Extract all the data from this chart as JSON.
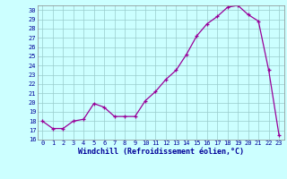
{
  "x": [
    0,
    1,
    2,
    3,
    4,
    5,
    6,
    7,
    8,
    9,
    10,
    11,
    12,
    13,
    14,
    15,
    16,
    17,
    18,
    19,
    20,
    21,
    22,
    23
  ],
  "y": [
    18.0,
    17.2,
    17.2,
    18.0,
    18.2,
    19.9,
    19.5,
    18.5,
    18.5,
    18.5,
    20.2,
    21.2,
    22.5,
    23.5,
    25.2,
    27.2,
    28.5,
    29.3,
    30.3,
    30.5,
    29.5,
    28.8,
    23.5,
    16.5
  ],
  "line_color": "#990099",
  "marker": "+",
  "markersize": 3,
  "linewidth": 0.9,
  "bg_color": "#ccffff",
  "grid_color": "#99cccc",
  "xlabel": "Windchill (Refroidissement éolien,°C)",
  "xlim": [
    -0.5,
    23.5
  ],
  "ylim": [
    16,
    30.5
  ],
  "xticks": [
    0,
    1,
    2,
    3,
    4,
    5,
    6,
    7,
    8,
    9,
    10,
    11,
    12,
    13,
    14,
    15,
    16,
    17,
    18,
    19,
    20,
    21,
    22,
    23
  ],
  "yticks": [
    16,
    17,
    18,
    19,
    20,
    21,
    22,
    23,
    24,
    25,
    26,
    27,
    28,
    29,
    30
  ],
  "tick_fontsize": 5.0,
  "xlabel_fontsize": 6.0,
  "tick_color": "#000099",
  "xlabel_color": "#000099",
  "markeredgewidth": 0.9
}
